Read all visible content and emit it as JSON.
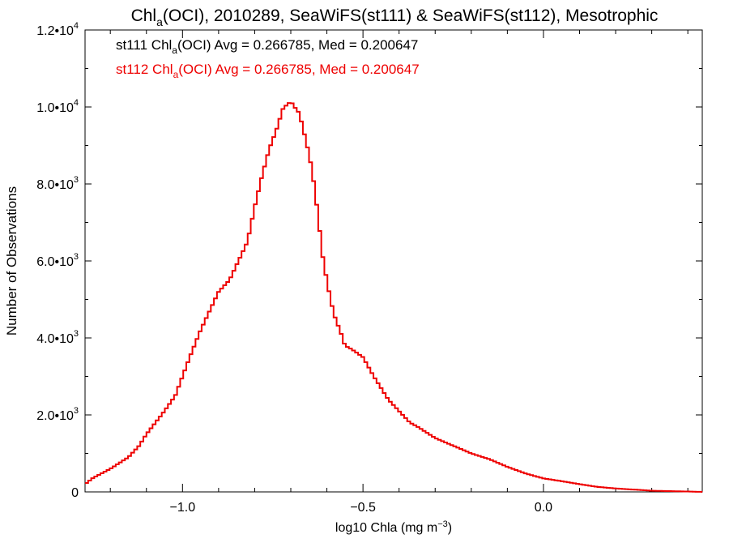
{
  "chart_data": {
    "type": "line",
    "title": {
      "pre": "Chl",
      "sub": "a",
      "post": "(OCI), 2010289, SeaWiFS(st111) & SeaWiFS(st112), Mesotrophic"
    },
    "xlabel": {
      "pre": "log10 Chla (mg m",
      "sup": "−3",
      "post": ")"
    },
    "ylabel": "Number of Observations",
    "xlim": [
      -1.27,
      0.44
    ],
    "ylim": [
      0,
      12000
    ],
    "x_ticks": [
      {
        "value": -1.0,
        "label": "−1.0"
      },
      {
        "value": -0.5,
        "label": "−0.5"
      },
      {
        "value": 0.0,
        "label": "0.0"
      }
    ],
    "y_ticks": [
      {
        "value": 0,
        "mant": "0",
        "exp": ""
      },
      {
        "value": 2000,
        "mant": "2.0•10",
        "exp": "3"
      },
      {
        "value": 4000,
        "mant": "4.0•10",
        "exp": "3"
      },
      {
        "value": 6000,
        "mant": "6.0•10",
        "exp": "3"
      },
      {
        "value": 8000,
        "mant": "8.0•10",
        "exp": "3"
      },
      {
        "value": 10000,
        "mant": "1.0•10",
        "exp": "4"
      },
      {
        "value": 12000,
        "mant": "1.2•10",
        "exp": "4"
      }
    ],
    "annotations": [
      {
        "color": "#000000",
        "pre": "st111 Chl",
        "sub": "a",
        "post": "(OCI) Avg = 0.266785, Med = 0.200647"
      },
      {
        "color": "#ee0000",
        "pre": "st112 Chl",
        "sub": "a",
        "post": "(OCI) Avg = 0.266785, Med = 0.200647"
      }
    ],
    "series": [
      {
        "color": "#ee0000",
        "x": [
          -1.27,
          -1.25,
          -1.2,
          -1.15,
          -1.12,
          -1.1,
          -1.05,
          -1.02,
          -1.0,
          -0.98,
          -0.95,
          -0.92,
          -0.9,
          -0.87,
          -0.85,
          -0.82,
          -0.8,
          -0.78,
          -0.76,
          -0.74,
          -0.73,
          -0.72,
          -0.71,
          -0.7,
          -0.69,
          -0.68,
          -0.67,
          -0.66,
          -0.65,
          -0.64,
          -0.63,
          -0.62,
          -0.61,
          -0.6,
          -0.59,
          -0.58,
          -0.56,
          -0.55,
          -0.53,
          -0.5,
          -0.47,
          -0.45,
          -0.43,
          -0.4,
          -0.37,
          -0.35,
          -0.3,
          -0.25,
          -0.2,
          -0.15,
          -0.1,
          -0.05,
          0.0,
          0.05,
          0.1,
          0.15,
          0.2,
          0.25,
          0.3,
          0.35,
          0.4,
          0.44
        ],
        "y": [
          200,
          350,
          600,
          900,
          1200,
          1500,
          2100,
          2500,
          3000,
          3500,
          4200,
          4800,
          5200,
          5500,
          5900,
          6500,
          7400,
          8200,
          8900,
          9400,
          9700,
          10000,
          10050,
          10150,
          10000,
          9900,
          9600,
          9200,
          8800,
          8300,
          7600,
          6800,
          6000,
          5500,
          5000,
          4600,
          4100,
          3800,
          3700,
          3500,
          3000,
          2700,
          2400,
          2100,
          1800,
          1700,
          1400,
          1200,
          1000,
          850,
          650,
          480,
          350,
          280,
          200,
          130,
          90,
          60,
          30,
          20,
          10,
          0
        ]
      }
    ]
  }
}
